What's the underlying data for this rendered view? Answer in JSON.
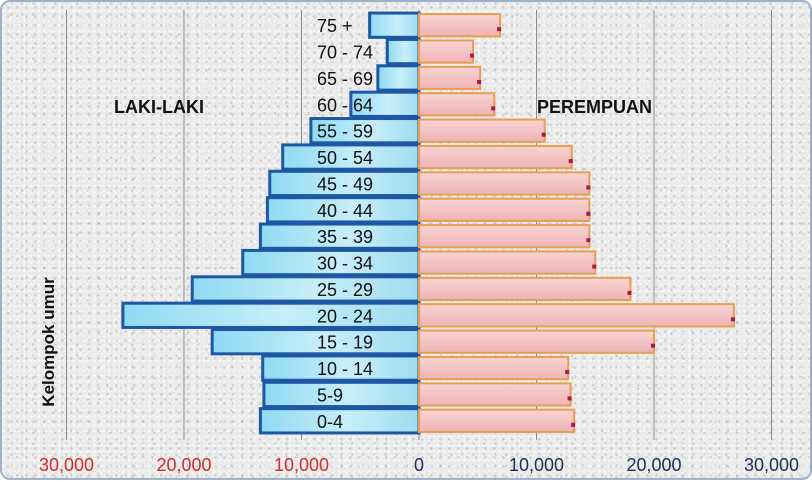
{
  "chart_data": {
    "type": "bar",
    "orientation": "horizontal",
    "subtype": "population-pyramid",
    "categories": [
      "0-4",
      "5-9",
      "10 - 14",
      "15 - 19",
      "20 - 24",
      "25 - 29",
      "30 - 34",
      "35 - 39",
      "40 - 44",
      "45 - 49",
      "50 - 54",
      "55 - 59",
      "60 - 64",
      "65 - 69",
      "70 - 74",
      "75 +"
    ],
    "series": [
      {
        "name": "LAKI-LAKI",
        "values": [
          13500,
          13200,
          13300,
          17600,
          25200,
          19300,
          15000,
          13500,
          12900,
          12700,
          11600,
          9200,
          5800,
          3500,
          2700,
          4200
        ],
        "color": "#5bc6ea",
        "border": "#1e57a3"
      },
      {
        "name": "PEREMPUAN",
        "values": [
          13200,
          12900,
          12700,
          20000,
          26800,
          18000,
          15000,
          14500,
          14500,
          14500,
          13000,
          10700,
          6400,
          5200,
          4600,
          6900
        ],
        "color": "#f4c2c2",
        "border": "#e79d52"
      }
    ],
    "xlim": [
      -30000,
      30000
    ],
    "xticks": [
      {
        "value": -30000,
        "label": "30,000"
      },
      {
        "value": -20000,
        "label": "20,000"
      },
      {
        "value": -10000,
        "label": "10,000"
      },
      {
        "value": 0,
        "label": "0"
      },
      {
        "value": 10000,
        "label": "10,000"
      },
      {
        "value": 20000,
        "label": "20,000"
      },
      {
        "value": 30000,
        "label": "30,000"
      }
    ],
    "ylabel": "Kelompok umur",
    "grid": true,
    "tick_colors": {
      "negative": "#d42a2a",
      "positive": "#1a2f55"
    }
  }
}
